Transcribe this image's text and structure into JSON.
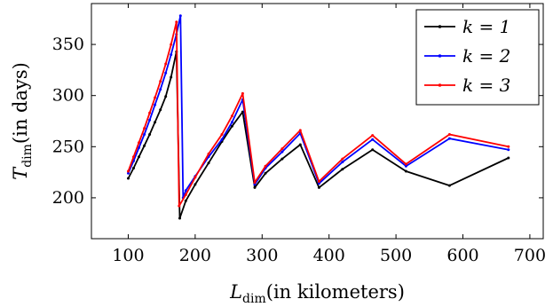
{
  "chart_data": {
    "type": "line",
    "xlabel": {
      "main": "L",
      "sub": "dim",
      "rest": "(in kilometers)"
    },
    "ylabel": {
      "main": "T",
      "sub": "dim",
      "rest": "(in days)"
    },
    "xlim": [
      45,
      720
    ],
    "ylim": [
      160,
      390
    ],
    "xticks": [
      100,
      200,
      300,
      400,
      500,
      600,
      700
    ],
    "yticks": [
      200,
      250,
      300,
      350
    ],
    "grid": false,
    "legend_position": "top-right",
    "series": [
      {
        "name": "k = 1",
        "color": "#000000",
        "x": [
          100,
          108,
          116,
          124,
          132,
          140,
          148,
          156,
          164,
          172,
          177,
          186,
          200,
          220,
          240,
          255,
          271,
          289,
          305,
          330,
          357,
          385,
          420,
          465,
          515,
          580,
          668
        ],
        "y": [
          219,
          229,
          240,
          251,
          262,
          274,
          286,
          299,
          318,
          343,
          180,
          197,
          213,
          234,
          255,
          270,
          284,
          210,
          224,
          238,
          252,
          210,
          228,
          247,
          226,
          212,
          239
        ]
      },
      {
        "name": "k = 2",
        "color": "#0000ff",
        "x": [
          100,
          108,
          116,
          124,
          132,
          140,
          148,
          156,
          164,
          172,
          178,
          182,
          186,
          200,
          220,
          240,
          255,
          271,
          289,
          305,
          330,
          357,
          385,
          420,
          465,
          515,
          580,
          668
        ],
        "y": [
          224,
          236,
          249,
          262,
          276,
          291,
          306,
          322,
          340,
          360,
          378,
          200,
          207,
          221,
          240,
          257,
          274,
          296,
          213,
          229,
          245,
          263,
          214,
          235,
          257,
          231,
          258,
          247
        ]
      },
      {
        "name": "k = 3",
        "color": "#ff0000",
        "x": [
          100,
          108,
          116,
          124,
          132,
          140,
          148,
          156,
          164,
          172,
          176,
          186,
          200,
          220,
          240,
          255,
          271,
          289,
          305,
          330,
          357,
          385,
          420,
          465,
          515,
          580,
          668
        ],
        "y": [
          226,
          240,
          254,
          268,
          283,
          298,
          314,
          331,
          350,
          372,
          192,
          203,
          220,
          243,
          262,
          280,
          302,
          215,
          231,
          248,
          266,
          216,
          238,
          261,
          233,
          262,
          250
        ]
      }
    ]
  }
}
